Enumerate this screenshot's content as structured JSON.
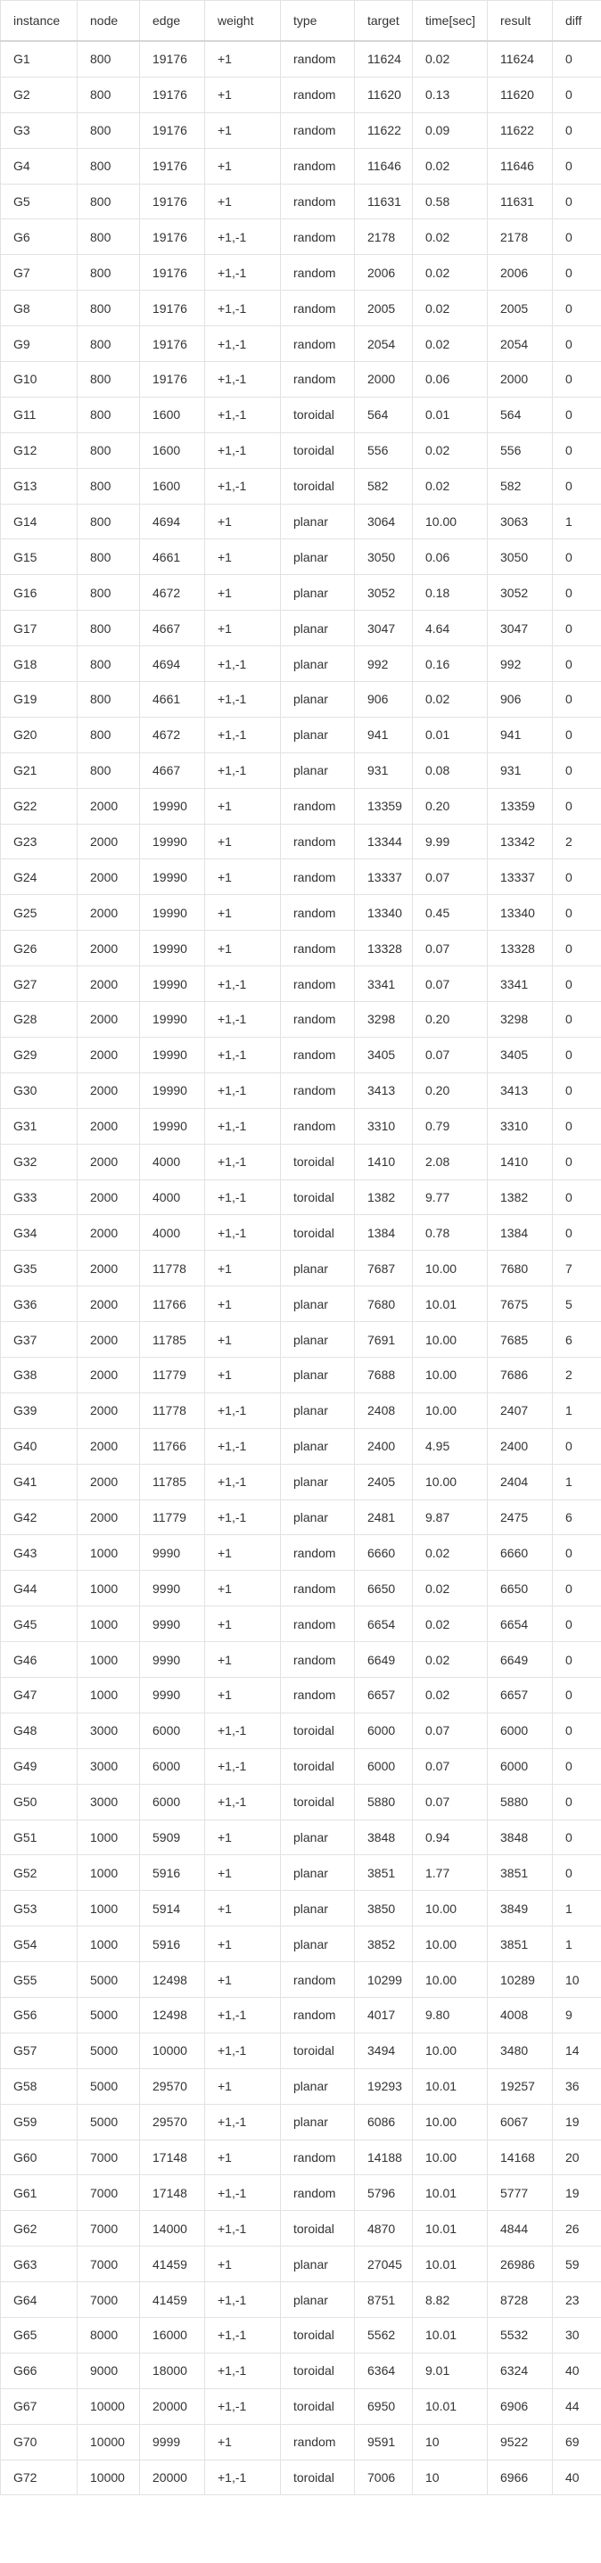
{
  "table": {
    "columns": [
      "instance",
      "node",
      "edge",
      "weight",
      "type",
      "target",
      "time[sec]",
      "result",
      "diff"
    ],
    "rows": [
      [
        "G1",
        "800",
        "19176",
        "+1",
        "random",
        "11624",
        "0.02",
        "11624",
        "0"
      ],
      [
        "G2",
        "800",
        "19176",
        "+1",
        "random",
        "11620",
        "0.13",
        "11620",
        "0"
      ],
      [
        "G3",
        "800",
        "19176",
        "+1",
        "random",
        "11622",
        "0.09",
        "11622",
        "0"
      ],
      [
        "G4",
        "800",
        "19176",
        "+1",
        "random",
        "11646",
        "0.02",
        "11646",
        "0"
      ],
      [
        "G5",
        "800",
        "19176",
        "+1",
        "random",
        "11631",
        "0.58",
        "11631",
        "0"
      ],
      [
        "G6",
        "800",
        "19176",
        "+1,-1",
        "random",
        "2178",
        "0.02",
        "2178",
        "0"
      ],
      [
        "G7",
        "800",
        "19176",
        "+1,-1",
        "random",
        "2006",
        "0.02",
        "2006",
        "0"
      ],
      [
        "G8",
        "800",
        "19176",
        "+1,-1",
        "random",
        "2005",
        "0.02",
        "2005",
        "0"
      ],
      [
        "G9",
        "800",
        "19176",
        "+1,-1",
        "random",
        "2054",
        "0.02",
        "2054",
        "0"
      ],
      [
        "G10",
        "800",
        "19176",
        "+1,-1",
        "random",
        "2000",
        "0.06",
        "2000",
        "0"
      ],
      [
        "G11",
        "800",
        "1600",
        "+1,-1",
        "toroidal",
        "564",
        "0.01",
        "564",
        "0"
      ],
      [
        "G12",
        "800",
        "1600",
        "+1,-1",
        "toroidal",
        "556",
        "0.02",
        "556",
        "0"
      ],
      [
        "G13",
        "800",
        "1600",
        "+1,-1",
        "toroidal",
        "582",
        "0.02",
        "582",
        "0"
      ],
      [
        "G14",
        "800",
        "4694",
        "+1",
        "planar",
        "3064",
        "10.00",
        "3063",
        "1"
      ],
      [
        "G15",
        "800",
        "4661",
        "+1",
        "planar",
        "3050",
        "0.06",
        "3050",
        "0"
      ],
      [
        "G16",
        "800",
        "4672",
        "+1",
        "planar",
        "3052",
        "0.18",
        "3052",
        "0"
      ],
      [
        "G17",
        "800",
        "4667",
        "+1",
        "planar",
        "3047",
        "4.64",
        "3047",
        "0"
      ],
      [
        "G18",
        "800",
        "4694",
        "+1,-1",
        "planar",
        "992",
        "0.16",
        "992",
        "0"
      ],
      [
        "G19",
        "800",
        "4661",
        "+1,-1",
        "planar",
        "906",
        "0.02",
        "906",
        "0"
      ],
      [
        "G20",
        "800",
        "4672",
        "+1,-1",
        "planar",
        "941",
        "0.01",
        "941",
        "0"
      ],
      [
        "G21",
        "800",
        "4667",
        "+1,-1",
        "planar",
        "931",
        "0.08",
        "931",
        "0"
      ],
      [
        "G22",
        "2000",
        "19990",
        "+1",
        "random",
        "13359",
        "0.20",
        "13359",
        "0"
      ],
      [
        "G23",
        "2000",
        "19990",
        "+1",
        "random",
        "13344",
        "9.99",
        "13342",
        "2"
      ],
      [
        "G24",
        "2000",
        "19990",
        "+1",
        "random",
        "13337",
        "0.07",
        "13337",
        "0"
      ],
      [
        "G25",
        "2000",
        "19990",
        "+1",
        "random",
        "13340",
        "0.45",
        "13340",
        "0"
      ],
      [
        "G26",
        "2000",
        "19990",
        "+1",
        "random",
        "13328",
        "0.07",
        "13328",
        "0"
      ],
      [
        "G27",
        "2000",
        "19990",
        "+1,-1",
        "random",
        "3341",
        "0.07",
        "3341",
        "0"
      ],
      [
        "G28",
        "2000",
        "19990",
        "+1,-1",
        "random",
        "3298",
        "0.20",
        "3298",
        "0"
      ],
      [
        "G29",
        "2000",
        "19990",
        "+1,-1",
        "random",
        "3405",
        "0.07",
        "3405",
        "0"
      ],
      [
        "G30",
        "2000",
        "19990",
        "+1,-1",
        "random",
        "3413",
        "0.20",
        "3413",
        "0"
      ],
      [
        "G31",
        "2000",
        "19990",
        "+1,-1",
        "random",
        "3310",
        "0.79",
        "3310",
        "0"
      ],
      [
        "G32",
        "2000",
        "4000",
        "+1,-1",
        "toroidal",
        "1410",
        "2.08",
        "1410",
        "0"
      ],
      [
        "G33",
        "2000",
        "4000",
        "+1,-1",
        "toroidal",
        "1382",
        "9.77",
        "1382",
        "0"
      ],
      [
        "G34",
        "2000",
        "4000",
        "+1,-1",
        "toroidal",
        "1384",
        "0.78",
        "1384",
        "0"
      ],
      [
        "G35",
        "2000",
        "11778",
        "+1",
        "planar",
        "7687",
        "10.00",
        "7680",
        "7"
      ],
      [
        "G36",
        "2000",
        "11766",
        "+1",
        "planar",
        "7680",
        "10.01",
        "7675",
        "5"
      ],
      [
        "G37",
        "2000",
        "11785",
        "+1",
        "planar",
        "7691",
        "10.00",
        "7685",
        "6"
      ],
      [
        "G38",
        "2000",
        "11779",
        "+1",
        "planar",
        "7688",
        "10.00",
        "7686",
        "2"
      ],
      [
        "G39",
        "2000",
        "11778",
        "+1,-1",
        "planar",
        "2408",
        "10.00",
        "2407",
        "1"
      ],
      [
        "G40",
        "2000",
        "11766",
        "+1,-1",
        "planar",
        "2400",
        "4.95",
        "2400",
        "0"
      ],
      [
        "G41",
        "2000",
        "11785",
        "+1,-1",
        "planar",
        "2405",
        "10.00",
        "2404",
        "1"
      ],
      [
        "G42",
        "2000",
        "11779",
        "+1,-1",
        "planar",
        "2481",
        "9.87",
        "2475",
        "6"
      ],
      [
        "G43",
        "1000",
        "9990",
        "+1",
        "random",
        "6660",
        "0.02",
        "6660",
        "0"
      ],
      [
        "G44",
        "1000",
        "9990",
        "+1",
        "random",
        "6650",
        "0.02",
        "6650",
        "0"
      ],
      [
        "G45",
        "1000",
        "9990",
        "+1",
        "random",
        "6654",
        "0.02",
        "6654",
        "0"
      ],
      [
        "G46",
        "1000",
        "9990",
        "+1",
        "random",
        "6649",
        "0.02",
        "6649",
        "0"
      ],
      [
        "G47",
        "1000",
        "9990",
        "+1",
        "random",
        "6657",
        "0.02",
        "6657",
        "0"
      ],
      [
        "G48",
        "3000",
        "6000",
        "+1,-1",
        "toroidal",
        "6000",
        "0.07",
        "6000",
        "0"
      ],
      [
        "G49",
        "3000",
        "6000",
        "+1,-1",
        "toroidal",
        "6000",
        "0.07",
        "6000",
        "0"
      ],
      [
        "G50",
        "3000",
        "6000",
        "+1,-1",
        "toroidal",
        "5880",
        "0.07",
        "5880",
        "0"
      ],
      [
        "G51",
        "1000",
        "5909",
        "+1",
        "planar",
        "3848",
        "0.94",
        "3848",
        "0"
      ],
      [
        "G52",
        "1000",
        "5916",
        "+1",
        "planar",
        "3851",
        "1.77",
        "3851",
        "0"
      ],
      [
        "G53",
        "1000",
        "5914",
        "+1",
        "planar",
        "3850",
        "10.00",
        "3849",
        "1"
      ],
      [
        "G54",
        "1000",
        "5916",
        "+1",
        "planar",
        "3852",
        "10.00",
        "3851",
        "1"
      ],
      [
        "G55",
        "5000",
        "12498",
        "+1",
        "random",
        "10299",
        "10.00",
        "10289",
        "10"
      ],
      [
        "G56",
        "5000",
        "12498",
        "+1,-1",
        "random",
        "4017",
        "9.80",
        "4008",
        "9"
      ],
      [
        "G57",
        "5000",
        "10000",
        "+1,-1",
        "toroidal",
        "3494",
        "10.00",
        "3480",
        "14"
      ],
      [
        "G58",
        "5000",
        "29570",
        "+1",
        "planar",
        "19293",
        "10.01",
        "19257",
        "36"
      ],
      [
        "G59",
        "5000",
        "29570",
        "+1,-1",
        "planar",
        "6086",
        "10.00",
        "6067",
        "19"
      ],
      [
        "G60",
        "7000",
        "17148",
        "+1",
        "random",
        "14188",
        "10.00",
        "14168",
        "20"
      ],
      [
        "G61",
        "7000",
        "17148",
        "+1,-1",
        "random",
        "5796",
        "10.01",
        "5777",
        "19"
      ],
      [
        "G62",
        "7000",
        "14000",
        "+1,-1",
        "toroidal",
        "4870",
        "10.01",
        "4844",
        "26"
      ],
      [
        "G63",
        "7000",
        "41459",
        "+1",
        "planar",
        "27045",
        "10.01",
        "26986",
        "59"
      ],
      [
        "G64",
        "7000",
        "41459",
        "+1,-1",
        "planar",
        "8751",
        "8.82",
        "8728",
        "23"
      ],
      [
        "G65",
        "8000",
        "16000",
        "+1,-1",
        "toroidal",
        "5562",
        "10.01",
        "5532",
        "30"
      ],
      [
        "G66",
        "9000",
        "18000",
        "+1,-1",
        "toroidal",
        "6364",
        "9.01",
        "6324",
        "40"
      ],
      [
        "G67",
        "10000",
        "20000",
        "+1,-1",
        "toroidal",
        "6950",
        "10.01",
        "6906",
        "44"
      ],
      [
        "G70",
        "10000",
        "9999",
        "+1",
        "random",
        "9591",
        "10",
        "9522",
        "69"
      ],
      [
        "G72",
        "10000",
        "20000",
        "+1,-1",
        "toroidal",
        "7006",
        "10",
        "6966",
        "40"
      ]
    ]
  }
}
